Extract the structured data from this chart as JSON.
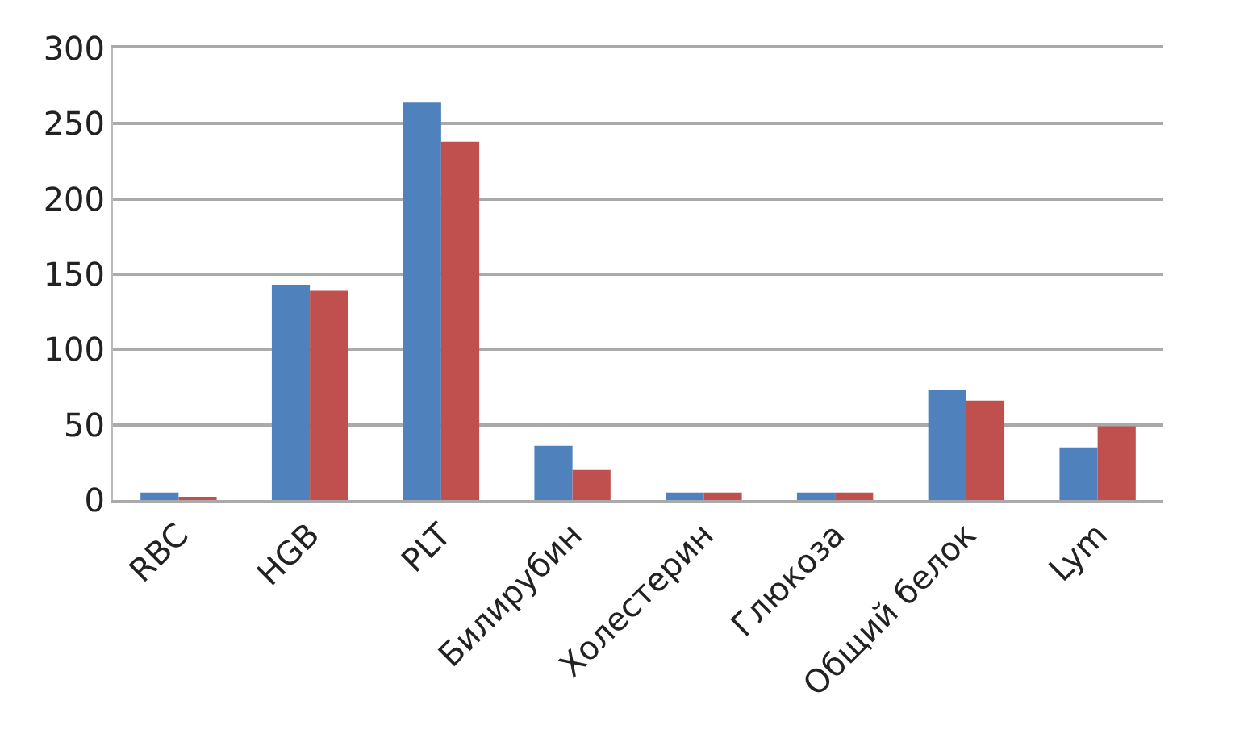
{
  "chart_data": {
    "type": "bar",
    "categories": [
      "RBC",
      "HGB",
      "PLT",
      "Билирубин",
      "Холестерин",
      "Глюкоза",
      "Общий белок",
      "Lym"
    ],
    "series": [
      {
        "color": "#4f81bd",
        "values": [
          5,
          143,
          264,
          36,
          5,
          5,
          73,
          35
        ]
      },
      {
        "color": "#c0504d",
        "values": [
          2,
          139,
          238,
          20,
          5,
          5,
          66,
          49
        ]
      }
    ],
    "ylim": [
      0,
      300
    ],
    "yticks": [
      0,
      50,
      100,
      150,
      200,
      250,
      300
    ],
    "grid": "y"
  }
}
